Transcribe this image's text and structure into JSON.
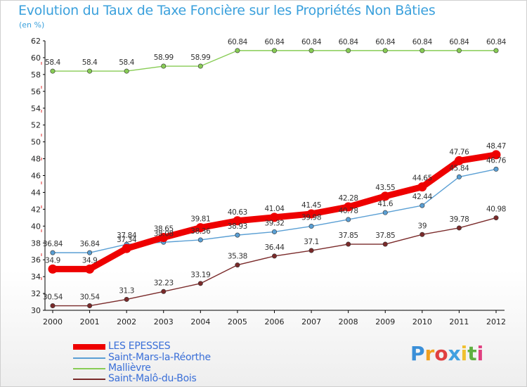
{
  "chart_data": {
    "type": "line",
    "title": "Evolution du Taux de Taxe Foncière sur les Propriétés Non Bâties",
    "subtitle": "(en %)",
    "categories": [
      "2000",
      "2001",
      "2002",
      "2003",
      "2004",
      "2005",
      "2006",
      "2007",
      "2008",
      "2009",
      "2010",
      "2011",
      "2012"
    ],
    "ylim": [
      30,
      62
    ],
    "yticks": [
      30,
      32,
      34,
      36,
      38,
      40,
      42,
      44,
      46,
      48,
      50,
      52,
      54,
      56,
      58,
      60,
      62
    ],
    "grid": false,
    "legend_position": "bottom-left",
    "series": [
      {
        "name": "LES EPESSES",
        "color": "#ee0000",
        "values": [
          34.9,
          34.9,
          37.34,
          38.65,
          39.81,
          40.63,
          41.04,
          41.45,
          42.28,
          43.55,
          44.65,
          47.76,
          48.47
        ],
        "labels": [
          "34.9",
          "34.9",
          "37.34",
          "38.65",
          "39.81",
          "40.63",
          "41.04",
          "41.45",
          "42.28",
          "43.55",
          "44.65",
          "47.76",
          "48.47"
        ]
      },
      {
        "name": "Saint-Mars-la-Réorthe",
        "color": "#5a9fd4",
        "values": [
          36.84,
          36.84,
          37.84,
          38.08,
          38.36,
          38.93,
          39.32,
          39.98,
          40.78,
          41.6,
          42.44,
          45.84,
          46.76
        ],
        "labels": [
          "36.84",
          "36.84",
          "37.84",
          "38.08",
          "38.36",
          "38.93",
          "39.32",
          "39.98",
          "40.78",
          "41.6",
          "42.44",
          "45.84",
          "46.76"
        ]
      },
      {
        "name": "Mallièvre",
        "color": "#88cc55",
        "values": [
          58.4,
          58.4,
          58.4,
          58.99,
          58.99,
          60.84,
          60.84,
          60.84,
          60.84,
          60.84,
          60.84,
          60.84,
          60.84
        ],
        "labels": [
          "58.4",
          "58.4",
          "58.4",
          "58.99",
          "58.99",
          "60.84",
          "60.84",
          "60.84",
          "60.84",
          "60.84",
          "60.84",
          "60.84",
          "60.84"
        ]
      },
      {
        "name": "Saint-Malô-du-Bois",
        "color": "#7a2a2a",
        "values": [
          30.54,
          30.54,
          31.3,
          32.23,
          33.19,
          35.38,
          36.44,
          37.1,
          37.85,
          37.85,
          39,
          39.78,
          40.98
        ],
        "labels": [
          "30.54",
          "30.54",
          "31.3",
          "32.23",
          "33.19",
          "35.38",
          "36.44",
          "37.1",
          "37.85",
          "37.85",
          "39",
          "39.78",
          "40.98"
        ]
      }
    ]
  },
  "brand": {
    "letters": [
      "P",
      "r",
      "o",
      "x",
      "i",
      "t",
      "i"
    ],
    "colors": [
      "#3a8fd8",
      "#f0a020",
      "#e04040",
      "#40a0e0",
      "#f0c030",
      "#60b040",
      "#e04080"
    ]
  }
}
